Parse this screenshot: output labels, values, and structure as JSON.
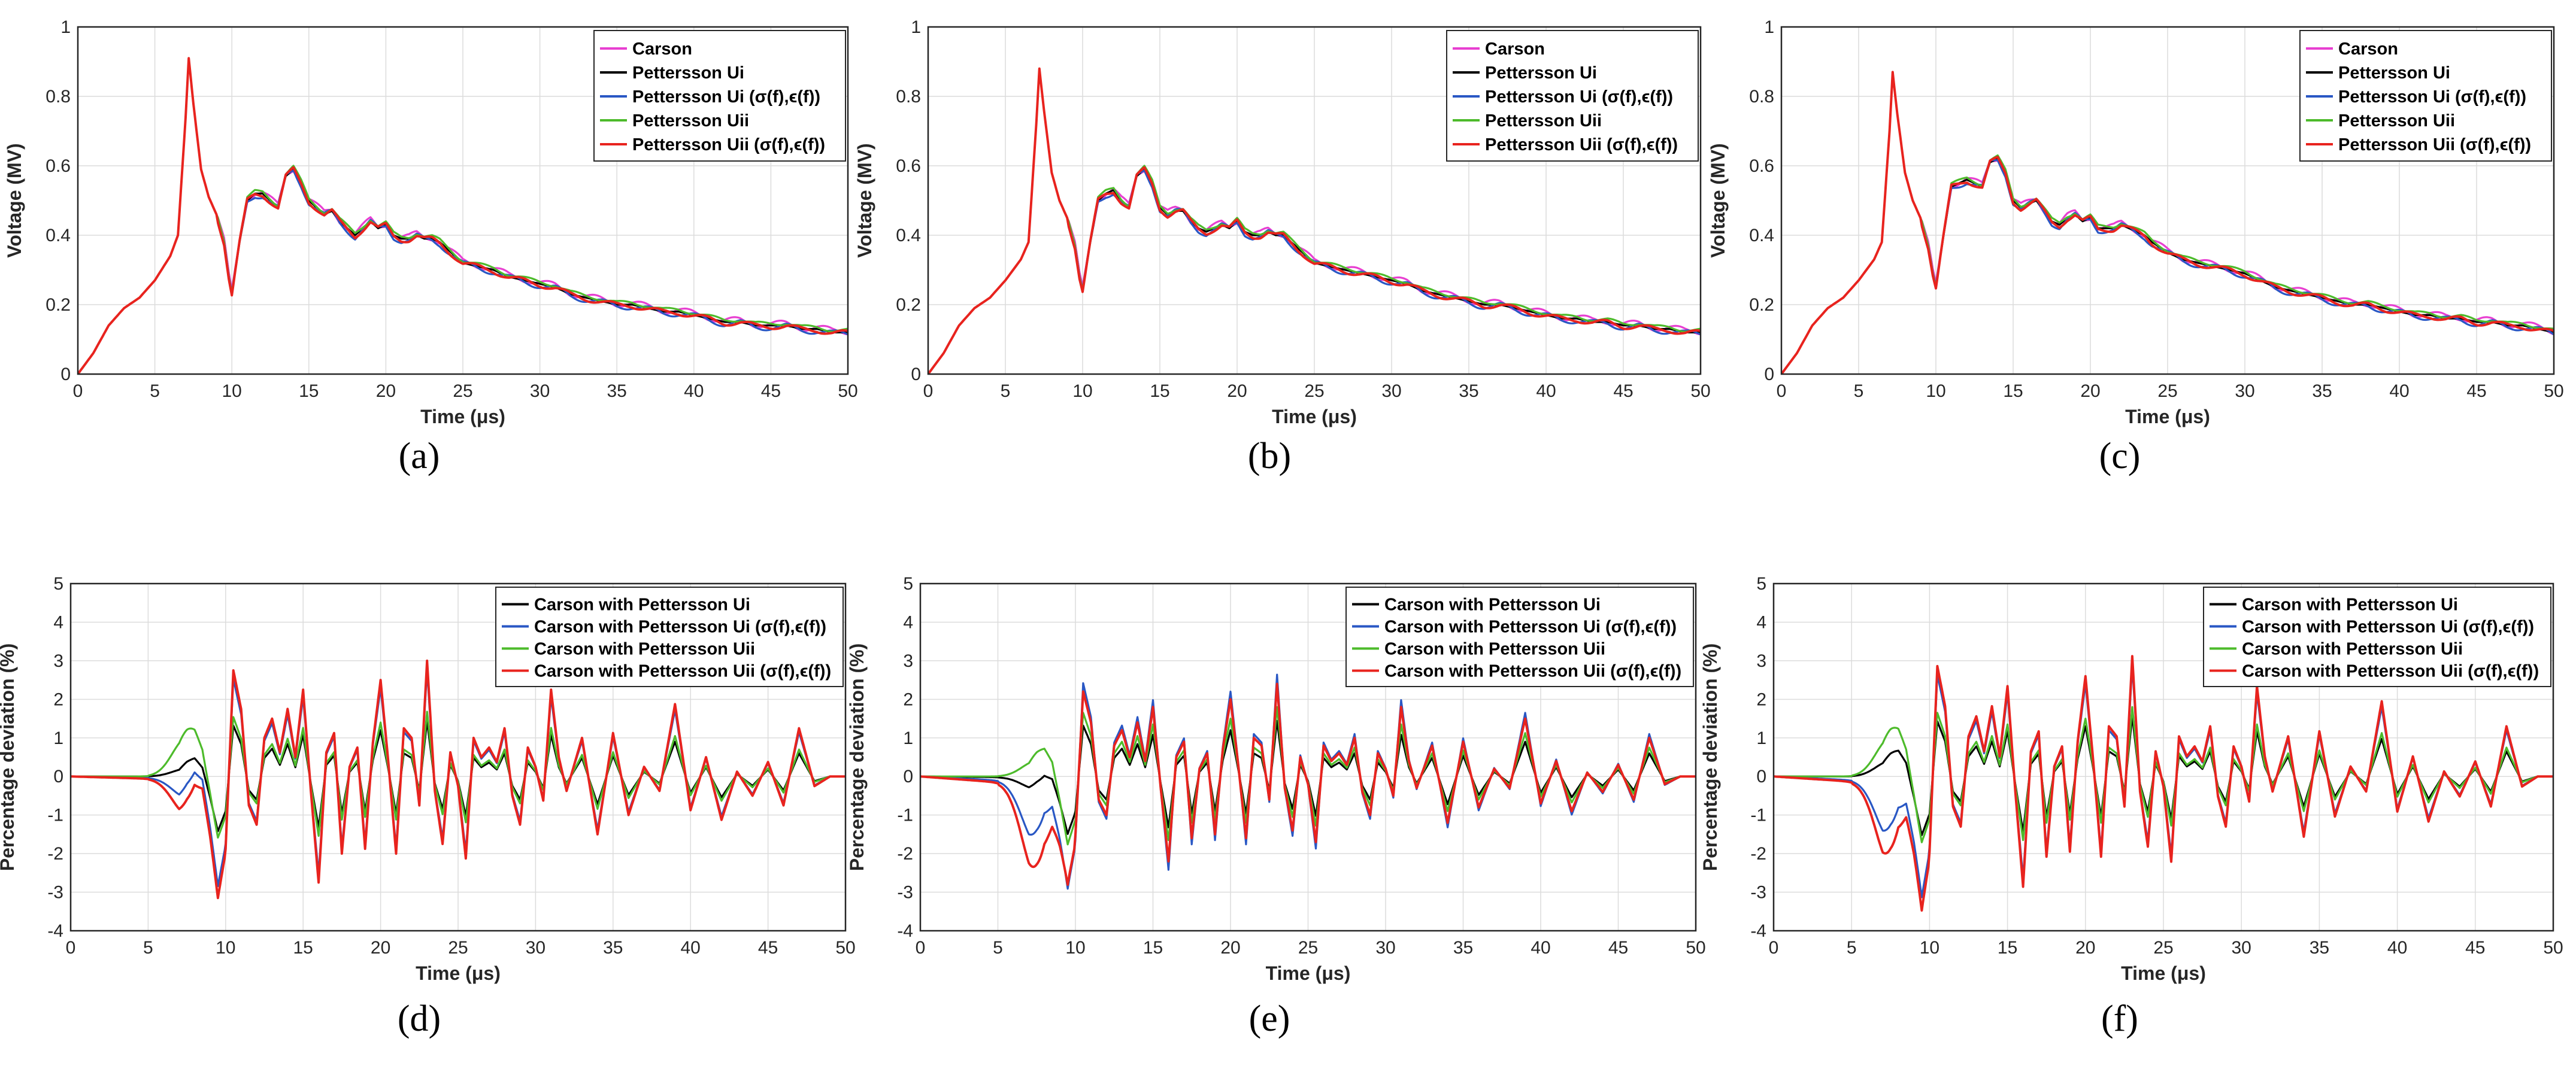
{
  "chart_data": [
    {
      "id": "a",
      "caption": "(a)",
      "type": "line",
      "xlabel": "Time (μs)",
      "ylabel": "Voltage (MV)",
      "xlim": [
        0,
        50
      ],
      "ylim": [
        0,
        1
      ],
      "xticks": [
        "0",
        "5",
        "10",
        "15",
        "20",
        "25",
        "30",
        "35",
        "40",
        "45",
        "50"
      ],
      "yticks": [
        "0",
        "0.2",
        "0.4",
        "0.6",
        "0.8",
        "1"
      ],
      "legend_position": "top-right",
      "series": [
        {
          "name": "Carson",
          "color": "#e83fd1"
        },
        {
          "name": "Pettersson Ui",
          "color": "#000000"
        },
        {
          "name": "Pettersson Ui (σ(f),ϵ(f))",
          "color": "#2957c4"
        },
        {
          "name": "Pettersson Uii",
          "color": "#4dbb2b"
        },
        {
          "name": "Pettersson Uii (σ(f),ϵ(f))",
          "color": "#e8231e"
        }
      ],
      "x": [
        0,
        1,
        2,
        3,
        4,
        5,
        6,
        6.5,
        7,
        7.2,
        7.5,
        8,
        8.5,
        9,
        9.5,
        9.8,
        10,
        10.5,
        11,
        11.5,
        12,
        12.5,
        13,
        13.5,
        14,
        14.5,
        15,
        15.5,
        16,
        16.5,
        17,
        17.5,
        18,
        18.5,
        19,
        19.5,
        20,
        20.5,
        21,
        21.5,
        22,
        22.5,
        23,
        23.5,
        24,
        25,
        26,
        27,
        28,
        29,
        30,
        31,
        32,
        33,
        34,
        35,
        36,
        37,
        38,
        39,
        40,
        41,
        42,
        43,
        44,
        45,
        46,
        47,
        48,
        49,
        50
      ],
      "values": [
        0,
        0.06,
        0.14,
        0.19,
        0.22,
        0.27,
        0.34,
        0.4,
        0.74,
        0.91,
        0.78,
        0.59,
        0.51,
        0.46,
        0.38,
        0.28,
        0.23,
        0.38,
        0.5,
        0.52,
        0.52,
        0.5,
        0.48,
        0.57,
        0.59,
        0.55,
        0.5,
        0.48,
        0.46,
        0.47,
        0.44,
        0.42,
        0.4,
        0.42,
        0.44,
        0.42,
        0.43,
        0.4,
        0.39,
        0.39,
        0.4,
        0.39,
        0.39,
        0.38,
        0.36,
        0.32,
        0.31,
        0.3,
        0.28,
        0.27,
        0.26,
        0.25,
        0.23,
        0.22,
        0.21,
        0.2,
        0.2,
        0.19,
        0.18,
        0.18,
        0.17,
        0.16,
        0.15,
        0.15,
        0.14,
        0.14,
        0.14,
        0.13,
        0.13,
        0.12,
        0.12
      ]
    },
    {
      "id": "b",
      "caption": "(b)",
      "type": "line",
      "xlabel": "Time (μs)",
      "ylabel": "Voltage (MV)",
      "xlim": [
        0,
        50
      ],
      "ylim": [
        0,
        1
      ],
      "xticks": [
        "0",
        "5",
        "10",
        "15",
        "20",
        "25",
        "30",
        "35",
        "40",
        "45",
        "50"
      ],
      "yticks": [
        "0",
        "0.2",
        "0.4",
        "0.6",
        "0.8",
        "1"
      ],
      "legend_position": "top-right",
      "series": [
        {
          "name": "Carson",
          "color": "#e83fd1"
        },
        {
          "name": "Pettersson Ui",
          "color": "#000000"
        },
        {
          "name": "Pettersson Ui (σ(f),ϵ(f))",
          "color": "#2957c4"
        },
        {
          "name": "Pettersson Uii",
          "color": "#4dbb2b"
        },
        {
          "name": "Pettersson Uii (σ(f),ϵ(f))",
          "color": "#e8231e"
        }
      ],
      "x": [
        0,
        1,
        2,
        3,
        4,
        5,
        6,
        6.5,
        7,
        7.2,
        7.5,
        8,
        8.5,
        9,
        9.5,
        9.8,
        10,
        10.5,
        11,
        11.5,
        12,
        12.5,
        13,
        13.5,
        14,
        14.5,
        15,
        15.5,
        16,
        16.5,
        17,
        17.5,
        18,
        18.5,
        19,
        19.5,
        20,
        20.5,
        21,
        21.5,
        22,
        22.5,
        23,
        23.5,
        24,
        25,
        26,
        27,
        28,
        29,
        30,
        31,
        32,
        33,
        34,
        35,
        36,
        37,
        38,
        39,
        40,
        41,
        42,
        43,
        44,
        45,
        46,
        47,
        48,
        49,
        50
      ],
      "values": [
        0,
        0.06,
        0.14,
        0.19,
        0.22,
        0.27,
        0.33,
        0.38,
        0.72,
        0.88,
        0.76,
        0.58,
        0.5,
        0.45,
        0.37,
        0.28,
        0.24,
        0.38,
        0.5,
        0.52,
        0.53,
        0.5,
        0.48,
        0.57,
        0.59,
        0.55,
        0.48,
        0.46,
        0.47,
        0.47,
        0.44,
        0.42,
        0.41,
        0.42,
        0.43,
        0.42,
        0.44,
        0.41,
        0.4,
        0.4,
        0.41,
        0.4,
        0.4,
        0.38,
        0.36,
        0.32,
        0.31,
        0.3,
        0.29,
        0.28,
        0.27,
        0.26,
        0.24,
        0.23,
        0.22,
        0.21,
        0.2,
        0.2,
        0.19,
        0.18,
        0.17,
        0.16,
        0.16,
        0.15,
        0.15,
        0.14,
        0.14,
        0.13,
        0.13,
        0.12,
        0.12
      ]
    },
    {
      "id": "c",
      "caption": "(c)",
      "type": "line",
      "xlabel": "Time (μs)",
      "ylabel": "Voltage (MV)",
      "xlim": [
        0,
        50
      ],
      "ylim": [
        0,
        1
      ],
      "xticks": [
        "0",
        "5",
        "10",
        "15",
        "20",
        "25",
        "30",
        "35",
        "40",
        "45",
        "50"
      ],
      "yticks": [
        "0",
        "0.2",
        "0.4",
        "0.6",
        "0.8",
        "1"
      ],
      "legend_position": "top-right",
      "series": [
        {
          "name": "Carson",
          "color": "#e83fd1"
        },
        {
          "name": "Pettersson Ui",
          "color": "#000000"
        },
        {
          "name": "Pettersson Ui (σ(f),ϵ(f))",
          "color": "#2957c4"
        },
        {
          "name": "Pettersson Uii",
          "color": "#4dbb2b"
        },
        {
          "name": "Pettersson Uii (σ(f),ϵ(f))",
          "color": "#e8231e"
        }
      ],
      "x": [
        0,
        1,
        2,
        3,
        4,
        5,
        6,
        6.5,
        7,
        7.2,
        7.5,
        8,
        8.5,
        9,
        9.5,
        9.8,
        10,
        10.5,
        11,
        11.5,
        12,
        12.5,
        13,
        13.5,
        14,
        14.5,
        15,
        15.5,
        16,
        16.5,
        17,
        17.5,
        18,
        18.5,
        19,
        19.5,
        20,
        20.5,
        21,
        21.5,
        22,
        22.5,
        23,
        23.5,
        24,
        25,
        26,
        27,
        28,
        29,
        30,
        31,
        32,
        33,
        34,
        35,
        36,
        37,
        38,
        39,
        40,
        41,
        42,
        43,
        44,
        45,
        46,
        47,
        48,
        49,
        50
      ],
      "values": [
        0,
        0.06,
        0.14,
        0.19,
        0.22,
        0.27,
        0.33,
        0.38,
        0.7,
        0.87,
        0.75,
        0.58,
        0.5,
        0.45,
        0.37,
        0.29,
        0.25,
        0.4,
        0.54,
        0.55,
        0.56,
        0.55,
        0.54,
        0.61,
        0.62,
        0.58,
        0.5,
        0.48,
        0.49,
        0.5,
        0.47,
        0.44,
        0.43,
        0.45,
        0.46,
        0.44,
        0.45,
        0.42,
        0.42,
        0.42,
        0.43,
        0.42,
        0.41,
        0.4,
        0.38,
        0.35,
        0.33,
        0.32,
        0.31,
        0.3,
        0.29,
        0.27,
        0.25,
        0.24,
        0.23,
        0.22,
        0.21,
        0.2,
        0.2,
        0.19,
        0.18,
        0.17,
        0.17,
        0.16,
        0.16,
        0.15,
        0.15,
        0.14,
        0.14,
        0.13,
        0.12
      ]
    },
    {
      "id": "d",
      "caption": "(d)",
      "type": "line",
      "xlabel": "Time (μs)",
      "ylabel": "Percentage deviation (%)",
      "xlim": [
        0,
        50
      ],
      "ylim": [
        -4,
        5
      ],
      "xticks": [
        "0",
        "5",
        "10",
        "15",
        "20",
        "25",
        "30",
        "35",
        "40",
        "45",
        "50"
      ],
      "yticks": [
        "-4",
        "-3",
        "-2",
        "-1",
        "0",
        "1",
        "2",
        "3",
        "4",
        "5"
      ],
      "legend_position": "top-right",
      "series": [
        {
          "name": "Carson with Pettersson Ui",
          "color": "#000000",
          "amp": 0.6,
          "early": 0.2
        },
        {
          "name": "Carson with Pettersson Ui (σ(f),ϵ(f))",
          "color": "#2957c4",
          "amp": 1.15,
          "early": -0.5
        },
        {
          "name": "Carson with Pettersson Uii",
          "color": "#4dbb2b",
          "amp": 0.7,
          "early": 1.0
        },
        {
          "name": "Carson with Pettersson Uii (σ(f),ϵ(f))",
          "color": "#e8231e",
          "amp": 1.25,
          "early": -0.9
        }
      ]
    },
    {
      "id": "e",
      "caption": "(e)",
      "type": "line",
      "xlabel": "Time (μs)",
      "ylabel": "Percentage deviation (%)",
      "xlim": [
        0,
        50
      ],
      "ylim": [
        -4,
        5
      ],
      "xticks": [
        "0",
        "5",
        "10",
        "15",
        "20",
        "25",
        "30",
        "35",
        "40",
        "45",
        "50"
      ],
      "yticks": [
        "-4",
        "-3",
        "-2",
        "-1",
        "0",
        "1",
        "2",
        "3",
        "4",
        "5"
      ],
      "legend_position": "top-right",
      "series": [
        {
          "name": "Carson with Pettersson Ui",
          "color": "#000000",
          "amp": 0.6,
          "early": -0.3
        },
        {
          "name": "Carson with Pettersson Ui (σ(f),ϵ(f))",
          "color": "#2957c4",
          "amp": 1.1,
          "early": -1.6
        },
        {
          "name": "Carson with Pettersson Uii",
          "color": "#4dbb2b",
          "amp": 0.75,
          "early": 0.4
        },
        {
          "name": "Carson with Pettersson Uii (σ(f),ϵ(f))",
          "color": "#e8231e",
          "amp": 1.0,
          "early": -2.4
        }
      ]
    },
    {
      "id": "f",
      "caption": "(f)",
      "type": "line",
      "xlabel": "Time (μs)",
      "ylabel": "Percentage deviation (%)",
      "xlim": [
        0,
        50
      ],
      "ylim": [
        -4,
        5
      ],
      "xticks": [
        "0",
        "5",
        "10",
        "15",
        "20",
        "25",
        "30",
        "35",
        "40",
        "45",
        "50"
      ],
      "yticks": [
        "-4",
        "-3",
        "-2",
        "-1",
        "0",
        "1",
        "2",
        "3",
        "4",
        "5"
      ],
      "legend_position": "top-right",
      "series": [
        {
          "name": "Carson with Pettersson Ui",
          "color": "#000000",
          "amp": 0.65,
          "early": 0.4
        },
        {
          "name": "Carson with Pettersson Ui (σ(f),ϵ(f))",
          "color": "#2957c4",
          "amp": 1.2,
          "early": -1.5
        },
        {
          "name": "Carson with Pettersson Uii",
          "color": "#4dbb2b",
          "amp": 0.75,
          "early": 1.0
        },
        {
          "name": "Carson with Pettersson Uii (σ(f),ϵ(f))",
          "color": "#e8231e",
          "amp": 1.3,
          "early": -2.1
        }
      ]
    }
  ],
  "deviation_base": {
    "x": [
      0,
      1,
      2,
      3,
      4,
      5,
      6,
      7,
      7.5,
      8,
      8.5,
      9,
      9.5,
      10,
      10.5,
      11,
      11.5,
      12,
      12.5,
      13,
      13.5,
      14,
      14.5,
      15,
      15.5,
      16,
      16.5,
      17,
      17.5,
      18,
      18.5,
      19,
      19.5,
      20,
      20.5,
      21,
      21.5,
      22,
      22.5,
      23,
      23.5,
      24,
      24.5,
      25,
      25.5,
      26,
      26.5,
      27,
      27.5,
      28,
      28.5,
      29,
      29.5,
      30,
      30.5,
      31,
      31.5,
      32,
      33,
      34,
      35,
      36,
      37,
      38,
      39,
      40,
      41,
      42,
      43,
      44,
      45,
      46,
      47,
      48,
      49,
      50
    ],
    "values": [
      0,
      0,
      0,
      0,
      0,
      0,
      0,
      0,
      0.3,
      0.5,
      0.2,
      -1.0,
      -2.4,
      -1.5,
      2.2,
      1.4,
      -0.6,
      -1.0,
      0.8,
      1.2,
      0.5,
      1.4,
      0.4,
      1.8,
      -0.3,
      -2.2,
      0.5,
      0.9,
      -1.6,
      0.2,
      0.6,
      -1.5,
      0.7,
      2.0,
      0.3,
      -1.6,
      1.0,
      0.8,
      -0.6,
      2.4,
      -0.3,
      -1.4,
      0.5,
      -0.2,
      -1.7,
      0.8,
      0.4,
      0.6,
      0.3,
      1.0,
      -0.4,
      -1.0,
      0.6,
      0.2,
      -0.5,
      1.8,
      0.4,
      -0.3,
      0.8,
      -1.2,
      0.9,
      -0.8,
      0.2,
      -0.3,
      1.5,
      -0.7,
      0.4,
      -0.9,
      0.1,
      -0.4,
      0.3,
      -0.6,
      1.0,
      -0.2,
      0,
      0
    ]
  }
}
